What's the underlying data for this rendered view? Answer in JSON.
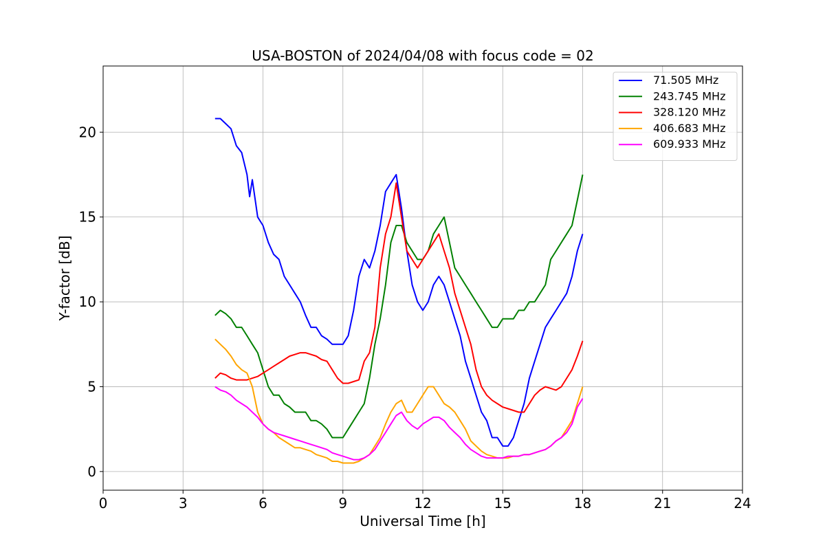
{
  "chart_data": {
    "type": "line",
    "title": "USA-BOSTON of 2024/04/08 with focus code = 02",
    "xlabel": "Universal Time [h]",
    "ylabel": "Y-factor [dB]",
    "xlim": [
      0,
      24
    ],
    "ylim": [
      -1.1,
      23.9
    ],
    "xticks": [
      0,
      3,
      6,
      9,
      12,
      15,
      18,
      21,
      24
    ],
    "yticks": [
      0,
      5,
      10,
      15,
      20
    ],
    "grid": true,
    "legend_position": "top-right",
    "series": [
      {
        "name": " 71.505 MHz",
        "color": "#0000ff",
        "x": [
          4.2,
          4.4,
          4.6,
          4.8,
          5.0,
          5.2,
          5.4,
          5.5,
          5.6,
          5.8,
          6.0,
          6.2,
          6.4,
          6.6,
          6.8,
          7.0,
          7.2,
          7.4,
          7.6,
          7.8,
          8.0,
          8.2,
          8.4,
          8.6,
          8.8,
          9.0,
          9.2,
          9.4,
          9.6,
          9.8,
          10.0,
          10.2,
          10.4,
          10.6,
          10.8,
          11.0,
          11.2,
          11.4,
          11.6,
          11.8,
          12.0,
          12.2,
          12.4,
          12.6,
          12.8,
          13.0,
          13.2,
          13.4,
          13.6,
          13.8,
          14.0,
          14.2,
          14.4,
          14.6,
          14.8,
          15.0,
          15.2,
          15.4,
          15.6,
          15.8,
          16.0,
          16.2,
          16.4,
          16.6,
          16.8,
          17.0,
          17.2,
          17.4,
          17.6,
          17.8,
          18.0
        ],
        "y": [
          20.8,
          20.8,
          20.5,
          20.2,
          19.2,
          18.8,
          17.5,
          16.2,
          17.2,
          15.0,
          14.5,
          13.5,
          12.8,
          12.5,
          11.5,
          11.0,
          10.5,
          10.0,
          9.2,
          8.5,
          8.5,
          8.0,
          7.8,
          7.5,
          7.5,
          7.5,
          8.0,
          9.5,
          11.5,
          12.5,
          12.0,
          13.0,
          14.5,
          16.5,
          17.0,
          17.5,
          15.5,
          13.0,
          11.0,
          10.0,
          9.5,
          10.0,
          11.0,
          11.5,
          11.0,
          10.0,
          9.0,
          8.0,
          6.5,
          5.5,
          4.5,
          3.5,
          3.0,
          2.0,
          2.0,
          1.5,
          1.5,
          2.0,
          3.0,
          4.0,
          5.5,
          6.5,
          7.5,
          8.5,
          9.0,
          9.5,
          10.0,
          10.5,
          11.5,
          13.0,
          14.0
        ]
      },
      {
        "name": "243.745 MHz",
        "color": "#008000",
        "x": [
          4.2,
          4.4,
          4.6,
          4.8,
          5.0,
          5.2,
          5.4,
          5.6,
          5.8,
          6.0,
          6.2,
          6.4,
          6.6,
          6.8,
          7.0,
          7.2,
          7.4,
          7.6,
          7.8,
          8.0,
          8.2,
          8.4,
          8.6,
          8.8,
          9.0,
          9.2,
          9.4,
          9.6,
          9.8,
          10.0,
          10.2,
          10.4,
          10.6,
          10.8,
          11.0,
          11.2,
          11.4,
          11.6,
          11.8,
          12.0,
          12.2,
          12.4,
          12.6,
          12.8,
          13.0,
          13.2,
          13.4,
          13.6,
          13.8,
          14.0,
          14.2,
          14.4,
          14.6,
          14.8,
          15.0,
          15.2,
          15.4,
          15.6,
          15.8,
          16.0,
          16.2,
          16.4,
          16.6,
          16.8,
          17.0,
          17.2,
          17.4,
          17.6,
          17.8,
          18.0
        ],
        "y": [
          9.2,
          9.5,
          9.3,
          9.0,
          8.5,
          8.5,
          8.0,
          7.5,
          7.0,
          6.0,
          5.0,
          4.5,
          4.5,
          4.0,
          3.8,
          3.5,
          3.5,
          3.5,
          3.0,
          3.0,
          2.8,
          2.5,
          2.0,
          2.0,
          2.0,
          2.5,
          3.0,
          3.5,
          4.0,
          5.5,
          7.5,
          9.0,
          11.0,
          13.5,
          14.5,
          14.5,
          13.5,
          13.0,
          12.5,
          12.5,
          13.0,
          14.0,
          14.5,
          15.0,
          13.5,
          12.0,
          11.5,
          11.0,
          10.5,
          10.0,
          9.5,
          9.0,
          8.5,
          8.5,
          9.0,
          9.0,
          9.0,
          9.5,
          9.5,
          10.0,
          10.0,
          10.5,
          11.0,
          12.5,
          13.0,
          13.5,
          14.0,
          14.5,
          16.0,
          17.5
        ]
      },
      {
        "name": "328.120 MHz",
        "color": "#ff0000",
        "x": [
          4.2,
          4.4,
          4.6,
          4.8,
          5.0,
          5.2,
          5.4,
          5.6,
          5.8,
          6.0,
          6.2,
          6.4,
          6.6,
          6.8,
          7.0,
          7.2,
          7.4,
          7.6,
          7.8,
          8.0,
          8.2,
          8.4,
          8.6,
          8.8,
          9.0,
          9.2,
          9.4,
          9.6,
          9.8,
          10.0,
          10.2,
          10.4,
          10.6,
          10.8,
          11.0,
          11.2,
          11.4,
          11.6,
          11.8,
          12.0,
          12.2,
          12.4,
          12.6,
          12.8,
          13.0,
          13.2,
          13.4,
          13.6,
          13.8,
          14.0,
          14.2,
          14.4,
          14.6,
          14.8,
          15.0,
          15.2,
          15.4,
          15.6,
          15.8,
          16.0,
          16.2,
          16.4,
          16.6,
          16.8,
          17.0,
          17.2,
          17.4,
          17.6,
          17.8,
          18.0
        ],
        "y": [
          5.5,
          5.8,
          5.7,
          5.5,
          5.4,
          5.4,
          5.4,
          5.5,
          5.6,
          5.8,
          6.0,
          6.2,
          6.4,
          6.6,
          6.8,
          6.9,
          7.0,
          7.0,
          6.9,
          6.8,
          6.6,
          6.5,
          6.0,
          5.5,
          5.2,
          5.2,
          5.3,
          5.4,
          6.5,
          7.0,
          8.5,
          12.0,
          14.0,
          15.0,
          17.0,
          15.0,
          13.0,
          12.5,
          12.0,
          12.5,
          13.0,
          13.5,
          14.0,
          13.0,
          12.0,
          10.5,
          9.5,
          8.5,
          7.5,
          6.0,
          5.0,
          4.5,
          4.2,
          4.0,
          3.8,
          3.7,
          3.6,
          3.5,
          3.5,
          4.0,
          4.5,
          4.8,
          5.0,
          4.9,
          4.8,
          5.0,
          5.5,
          6.0,
          6.8,
          7.7
        ]
      },
      {
        "name": "406.683 MHz",
        "color": "#ffa500",
        "x": [
          4.2,
          4.4,
          4.6,
          4.8,
          5.0,
          5.2,
          5.4,
          5.6,
          5.8,
          6.0,
          6.2,
          6.4,
          6.6,
          6.8,
          7.0,
          7.2,
          7.4,
          7.6,
          7.8,
          8.0,
          8.2,
          8.4,
          8.6,
          8.8,
          9.0,
          9.2,
          9.4,
          9.6,
          9.8,
          10.0,
          10.2,
          10.4,
          10.6,
          10.8,
          11.0,
          11.2,
          11.4,
          11.6,
          11.8,
          12.0,
          12.2,
          12.4,
          12.6,
          12.8,
          13.0,
          13.2,
          13.4,
          13.6,
          13.8,
          14.0,
          14.2,
          14.4,
          14.6,
          14.8,
          15.0,
          15.2,
          15.4,
          15.6,
          15.8,
          16.0,
          16.2,
          16.4,
          16.6,
          16.8,
          17.0,
          17.2,
          17.4,
          17.6,
          17.8,
          18.0
        ],
        "y": [
          7.8,
          7.5,
          7.2,
          6.8,
          6.3,
          6.0,
          5.8,
          5.0,
          3.5,
          2.8,
          2.5,
          2.3,
          2.0,
          1.8,
          1.6,
          1.4,
          1.4,
          1.3,
          1.2,
          1.0,
          0.9,
          0.8,
          0.6,
          0.6,
          0.5,
          0.5,
          0.5,
          0.6,
          0.8,
          1.0,
          1.5,
          2.0,
          2.8,
          3.5,
          4.0,
          4.2,
          3.5,
          3.5,
          4.0,
          4.5,
          5.0,
          5.0,
          4.5,
          4.0,
          3.8,
          3.5,
          3.0,
          2.5,
          1.8,
          1.5,
          1.2,
          1.0,
          0.9,
          0.8,
          0.8,
          0.8,
          0.9,
          0.9,
          1.0,
          1.0,
          1.1,
          1.2,
          1.3,
          1.5,
          1.8,
          2.0,
          2.5,
          3.0,
          4.0,
          5.0
        ]
      },
      {
        "name": "609.933 MHz",
        "color": "#ff00ff",
        "x": [
          4.2,
          4.4,
          4.6,
          4.8,
          5.0,
          5.2,
          5.4,
          5.6,
          5.8,
          6.0,
          6.2,
          6.4,
          6.6,
          6.8,
          7.0,
          7.2,
          7.4,
          7.6,
          7.8,
          8.0,
          8.2,
          8.4,
          8.6,
          8.8,
          9.0,
          9.2,
          9.4,
          9.6,
          9.8,
          10.0,
          10.2,
          10.4,
          10.6,
          10.8,
          11.0,
          11.2,
          11.4,
          11.6,
          11.8,
          12.0,
          12.2,
          12.4,
          12.6,
          12.8,
          13.0,
          13.2,
          13.4,
          13.6,
          13.8,
          14.0,
          14.2,
          14.4,
          14.6,
          14.8,
          15.0,
          15.2,
          15.4,
          15.6,
          15.8,
          16.0,
          16.2,
          16.4,
          16.6,
          16.8,
          17.0,
          17.2,
          17.4,
          17.6,
          17.8,
          18.0
        ],
        "y": [
          5.0,
          4.8,
          4.7,
          4.5,
          4.2,
          4.0,
          3.8,
          3.5,
          3.2,
          2.8,
          2.5,
          2.3,
          2.2,
          2.1,
          2.0,
          1.9,
          1.8,
          1.7,
          1.6,
          1.5,
          1.4,
          1.3,
          1.1,
          1.0,
          0.9,
          0.8,
          0.7,
          0.7,
          0.8,
          1.0,
          1.3,
          1.8,
          2.3,
          2.8,
          3.3,
          3.5,
          3.0,
          2.7,
          2.5,
          2.8,
          3.0,
          3.2,
          3.2,
          3.0,
          2.6,
          2.3,
          2.0,
          1.6,
          1.3,
          1.1,
          0.9,
          0.8,
          0.8,
          0.8,
          0.8,
          0.9,
          0.9,
          0.9,
          1.0,
          1.0,
          1.1,
          1.2,
          1.3,
          1.5,
          1.8,
          2.0,
          2.3,
          2.8,
          3.8,
          4.3
        ]
      }
    ]
  }
}
